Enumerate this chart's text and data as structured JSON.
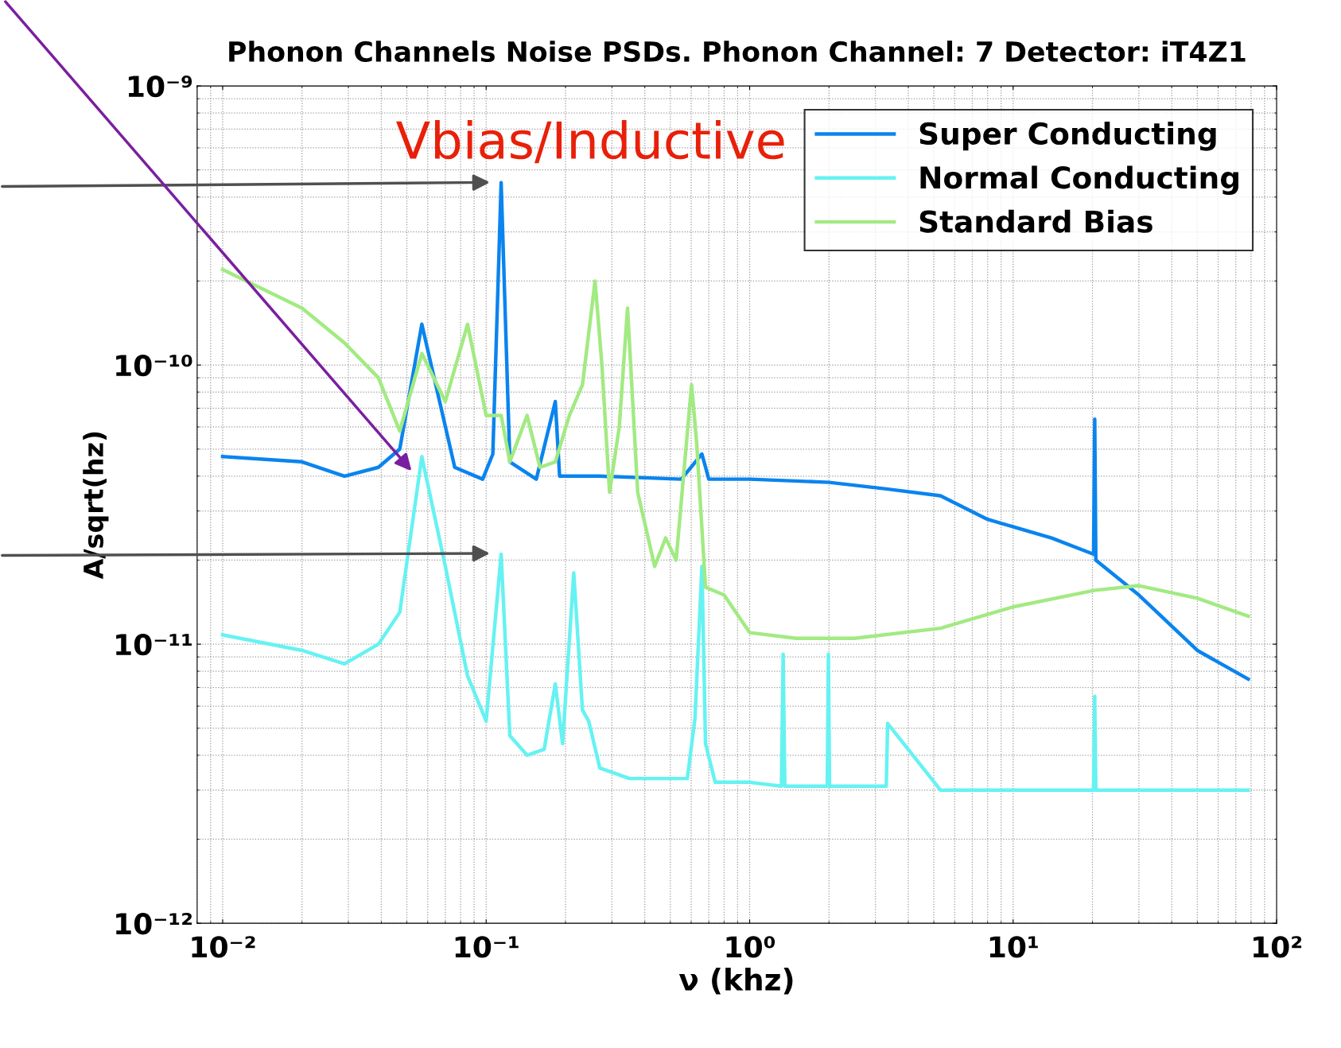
{
  "chart_data": {
    "type": "line",
    "title": "Phonon Channels Noise PSDs. Phonon Channel: 7 Detector: iT4Z1",
    "xlabel": "ν (khz)",
    "ylabel": "A/sqrt(hz)",
    "annotations": [
      "Vbias/Inductive"
    ],
    "log": "xy",
    "grid": true,
    "legend": "top right",
    "line_style": "solid",
    "marker": "none",
    "xlim": [
      0.008,
      100
    ],
    "ylim": [
      1e-12,
      1e-09
    ],
    "xticks": [
      {
        "value": 0.01,
        "label": "10⁻²"
      },
      {
        "value": 0.1,
        "label": "10⁻¹"
      },
      {
        "value": 1,
        "label": "10⁰"
      },
      {
        "value": 10,
        "label": "10¹"
      },
      {
        "value": 100,
        "label": "10²"
      }
    ],
    "yticks": [
      {
        "value": 1e-12,
        "label": "10⁻¹²"
      },
      {
        "value": 1e-11,
        "label": "10⁻¹¹"
      },
      {
        "value": 1e-10,
        "label": "10⁻¹⁰"
      },
      {
        "value": 1e-09,
        "label": "10⁻⁹"
      }
    ],
    "series": [
      {
        "name": "Super Conducting",
        "color": "#0a84ee",
        "x": [
          0.01,
          0.02,
          0.029,
          0.039,
          0.047,
          0.057,
          0.076,
          0.097,
          0.106,
          0.114,
          0.123,
          0.155,
          0.183,
          0.19,
          0.27,
          0.55,
          0.659,
          0.7,
          1,
          2,
          3.3,
          5.3,
          8,
          14,
          20.2,
          20.4,
          20.6,
          30,
          50,
          78
        ],
        "values": [
          4.7e-11,
          4.5e-11,
          4e-11,
          4.3e-11,
          5e-11,
          1.4e-10,
          4.3e-11,
          3.9e-11,
          4.8e-11,
          4.5e-10,
          4.5e-11,
          3.9e-11,
          7.4e-11,
          4e-11,
          4e-11,
          3.9e-11,
          4.8e-11,
          3.9e-11,
          3.9e-11,
          3.8e-11,
          3.6e-11,
          3.4e-11,
          2.8e-11,
          2.4e-11,
          2.1e-11,
          6.4e-11,
          2e-11,
          1.5e-11,
          9.5e-12,
          7.5e-12
        ]
      },
      {
        "name": "Normal Conducting",
        "color": "#66f2f2",
        "x": [
          0.01,
          0.02,
          0.029,
          0.039,
          0.047,
          0.057,
          0.07,
          0.085,
          0.1,
          0.114,
          0.123,
          0.143,
          0.166,
          0.183,
          0.195,
          0.215,
          0.232,
          0.245,
          0.27,
          0.35,
          0.58,
          0.62,
          0.659,
          0.68,
          0.74,
          1,
          1.32,
          1.34,
          1.36,
          1.97,
          1.99,
          2.01,
          3.3,
          3.34,
          5.3,
          20.2,
          20.4,
          20.6,
          78
        ],
        "values": [
          1.08e-11,
          9.5e-12,
          8.5e-12,
          1e-11,
          1.3e-11,
          4.7e-11,
          1.9e-11,
          7.7e-12,
          5.3e-12,
          2.1e-11,
          4.7e-12,
          4e-12,
          4.2e-12,
          7.2e-12,
          4.4e-12,
          1.8e-11,
          5.8e-12,
          5.3e-12,
          3.6e-12,
          3.3e-12,
          3.3e-12,
          5.4e-12,
          1.9e-11,
          4.4e-12,
          3.2e-12,
          3.2e-12,
          3.1e-12,
          9.2e-12,
          3.1e-12,
          3.1e-12,
          9.2e-12,
          3.1e-12,
          3.1e-12,
          5.2e-12,
          3e-12,
          3e-12,
          6.5e-12,
          3e-12,
          3e-12
        ]
      },
      {
        "name": "Standard Bias",
        "color": "#a2ea82",
        "x": [
          0.01,
          0.02,
          0.029,
          0.039,
          0.047,
          0.057,
          0.07,
          0.085,
          0.1,
          0.114,
          0.123,
          0.143,
          0.16,
          0.183,
          0.207,
          0.232,
          0.259,
          0.275,
          0.294,
          0.32,
          0.344,
          0.376,
          0.436,
          0.48,
          0.526,
          0.602,
          0.63,
          0.68,
          0.8,
          1,
          1.5,
          2.5,
          5.3,
          10,
          20.4,
          30,
          50,
          78
        ],
        "values": [
          2.2e-10,
          1.6e-10,
          1.2e-10,
          9e-11,
          5.8e-11,
          1.1e-10,
          7.4e-11,
          1.4e-10,
          6.6e-11,
          6.6e-11,
          4.5e-11,
          6.6e-11,
          4.3e-11,
          4.5e-11,
          6.6e-11,
          8.5e-11,
          2e-10,
          1e-10,
          3.5e-11,
          6e-11,
          1.6e-10,
          3.5e-11,
          1.9e-11,
          2.4e-11,
          2e-11,
          8.5e-11,
          5.2e-11,
          1.6e-11,
          1.5e-11,
          1.1e-11,
          1.05e-11,
          1.05e-11,
          1.14e-11,
          1.36e-11,
          1.56e-11,
          1.62e-11,
          1.46e-11,
          1.26e-11
        ]
      }
    ]
  }
}
